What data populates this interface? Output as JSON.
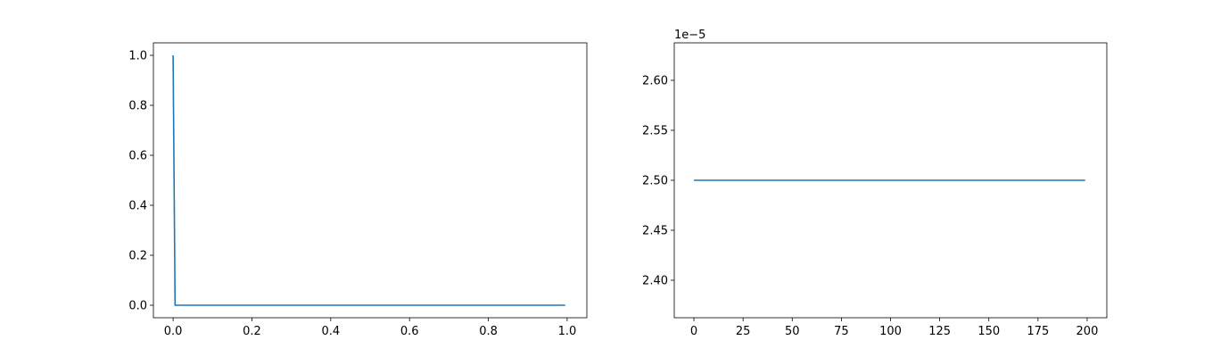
{
  "chart_data": [
    {
      "type": "line",
      "title": "",
      "xlabel": "",
      "ylabel": "",
      "xlim": [
        -0.05,
        1.05
      ],
      "ylim": [
        -0.05,
        1.05
      ],
      "x_ticks": [
        0.0,
        0.2,
        0.4,
        0.6,
        0.8,
        1.0
      ],
      "x_tick_labels": [
        "0.0",
        "0.2",
        "0.4",
        "0.6",
        "0.8",
        "1.0"
      ],
      "y_ticks": [
        0.0,
        0.2,
        0.4,
        0.6,
        0.8,
        1.0
      ],
      "y_tick_labels": [
        "0.0",
        "0.2",
        "0.4",
        "0.6",
        "0.8",
        "1.0"
      ],
      "grid": false,
      "legend": "none",
      "series": [
        {
          "color": "#1f77b4",
          "x": [
            0.0,
            0.005,
            0.995
          ],
          "y": [
            1.0,
            0.0,
            0.0
          ]
        }
      ]
    },
    {
      "type": "line",
      "title": "",
      "xlabel": "",
      "ylabel": "",
      "y_offset_label": "1e−5",
      "xlim": [
        -10,
        210
      ],
      "ylim": [
        2.3625,
        2.6375
      ],
      "x_ticks": [
        0,
        25,
        50,
        75,
        100,
        125,
        150,
        175,
        200
      ],
      "x_tick_labels": [
        "0",
        "25",
        "50",
        "75",
        "100",
        "125",
        "150",
        "175",
        "200"
      ],
      "y_ticks": [
        2.4,
        2.45,
        2.5,
        2.55,
        2.6
      ],
      "y_tick_labels": [
        "2.40",
        "2.45",
        "2.50",
        "2.55",
        "2.60"
      ],
      "grid": false,
      "legend": "none",
      "series": [
        {
          "color": "#1f77b4",
          "x": [
            0,
            199
          ],
          "y": [
            2.5,
            2.5
          ]
        }
      ]
    }
  ]
}
